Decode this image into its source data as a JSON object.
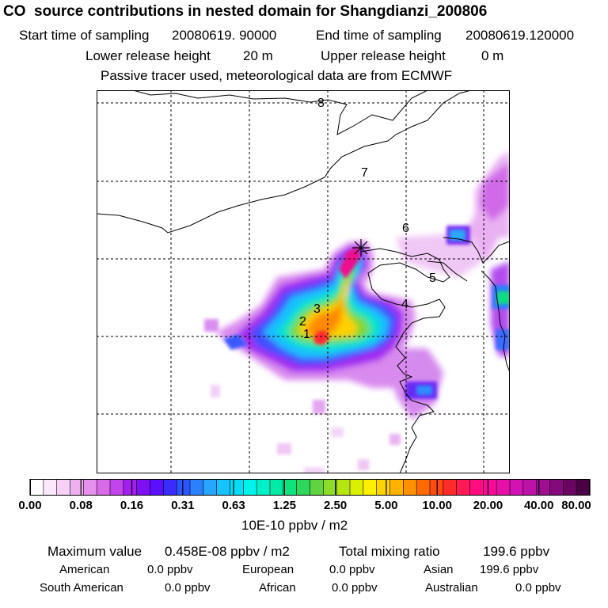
{
  "header": {
    "title": "CO  source contributions in nested domain for Shangdianzi_200806",
    "start_label": "Start time of sampling",
    "start_value": "20080619. 90000",
    "end_label": "End time of sampling",
    "end_value": "20080619.120000",
    "lower_label": "Lower release height",
    "lower_value": "20 m",
    "upper_label": "Upper release height",
    "upper_value": "0 m",
    "note": "Passive tracer used, meteorological data are from ECMWF"
  },
  "chart_data": {
    "type": "heatmap",
    "title": "CO  source contributions in nested domain for Shangdianzi_200806",
    "gridlines": true,
    "receptor_marker": "star",
    "point_labels": [
      "1",
      "2",
      "3",
      "4",
      "5",
      "6",
      "7",
      "8"
    ],
    "colorbar": {
      "tick_labels": [
        "0.00",
        "0.08",
        "0.16",
        "0.31",
        "0.63",
        "1.25",
        "2.50",
        "5.00",
        "10.00",
        "20.00",
        "40.00",
        "80.00"
      ],
      "colors": [
        "#ffffff",
        "#fbe8fb",
        "#f6d0f6",
        "#efb0ef",
        "#e690ee",
        "#d96ae8",
        "#c244ec",
        "#a21ff0",
        "#7f10f4",
        "#5a10ff",
        "#3a2cff",
        "#2c55ff",
        "#2b80ff",
        "#28a6ff",
        "#17c3ff",
        "#05dcf5",
        "#00f3ea",
        "#00f0c8",
        "#00eaa4",
        "#10e37e",
        "#2ed65b",
        "#5fd440",
        "#8cdc28",
        "#b6e514",
        "#dcef00",
        "#fff000",
        "#ffd300",
        "#ffb200",
        "#ff9100",
        "#ff6b00",
        "#ff4a10",
        "#ff2a2a",
        "#ff1a55",
        "#ff0d80",
        "#f50b98",
        "#e610a8",
        "#d212b2",
        "#bb12a8",
        "#a00e92",
        "#84097a",
        "#6a0562",
        "#4b0045"
      ],
      "unit": "10E-10 ppbv / m2"
    },
    "max_value_label": "Maximum value",
    "max_value": "0.458E-08 ppbv / m2",
    "total_label": "Total mixing ratio",
    "total_value": "199.6 ppbv",
    "contributions": [
      {
        "region": "American",
        "value": "0.0 ppbv"
      },
      {
        "region": "European",
        "value": "0.0 ppbv"
      },
      {
        "region": "Asian",
        "value": "199.6 ppbv"
      },
      {
        "region": "South American",
        "value": "0.0 ppbv"
      },
      {
        "region": "African",
        "value": "0.0 ppbv"
      },
      {
        "region": "Australian",
        "value": "0.0 ppbv"
      }
    ]
  }
}
